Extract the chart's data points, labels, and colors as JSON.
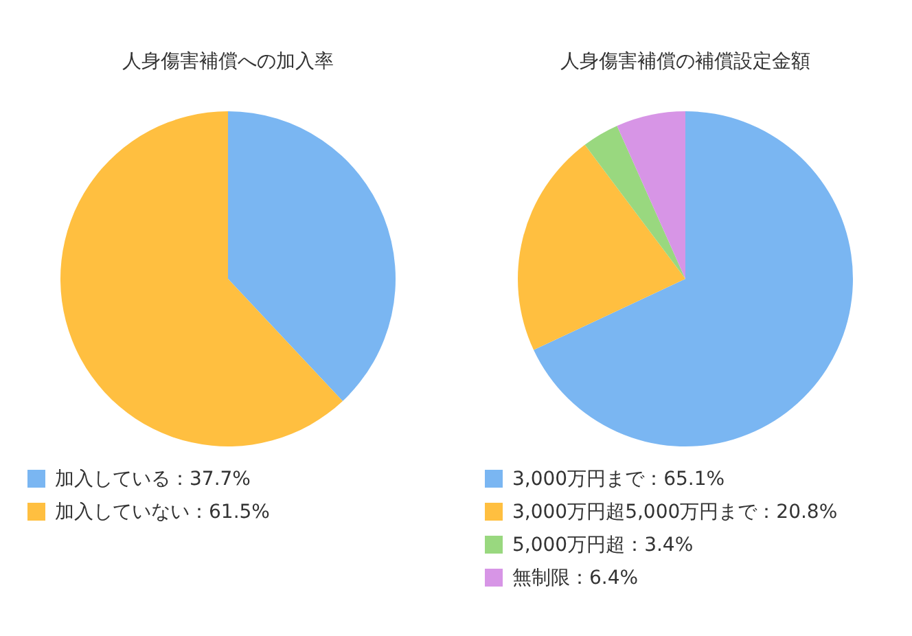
{
  "chart_data": [
    {
      "type": "pie",
      "title": "人身傷害補償への加入率",
      "categories": [
        "加入している：37.7%",
        "加入していない：61.5%"
      ],
      "values": [
        37.7,
        61.5
      ],
      "colors": [
        "#7ab6f2",
        "#ffbf40"
      ],
      "legend": "bottom"
    },
    {
      "type": "pie",
      "title": "人身傷害補償の補償設定金額",
      "categories": [
        "3,000万円まで：65.1%",
        "3,000万円超5,000万円まで：20.8%",
        "5,000万円超：3.4%",
        "無制限：6.4%"
      ],
      "values": [
        65.1,
        20.8,
        3.4,
        6.4
      ],
      "colors": [
        "#7ab6f2",
        "#ffbf40",
        "#99d87f",
        "#d795e6"
      ],
      "legend": "bottom"
    }
  ]
}
